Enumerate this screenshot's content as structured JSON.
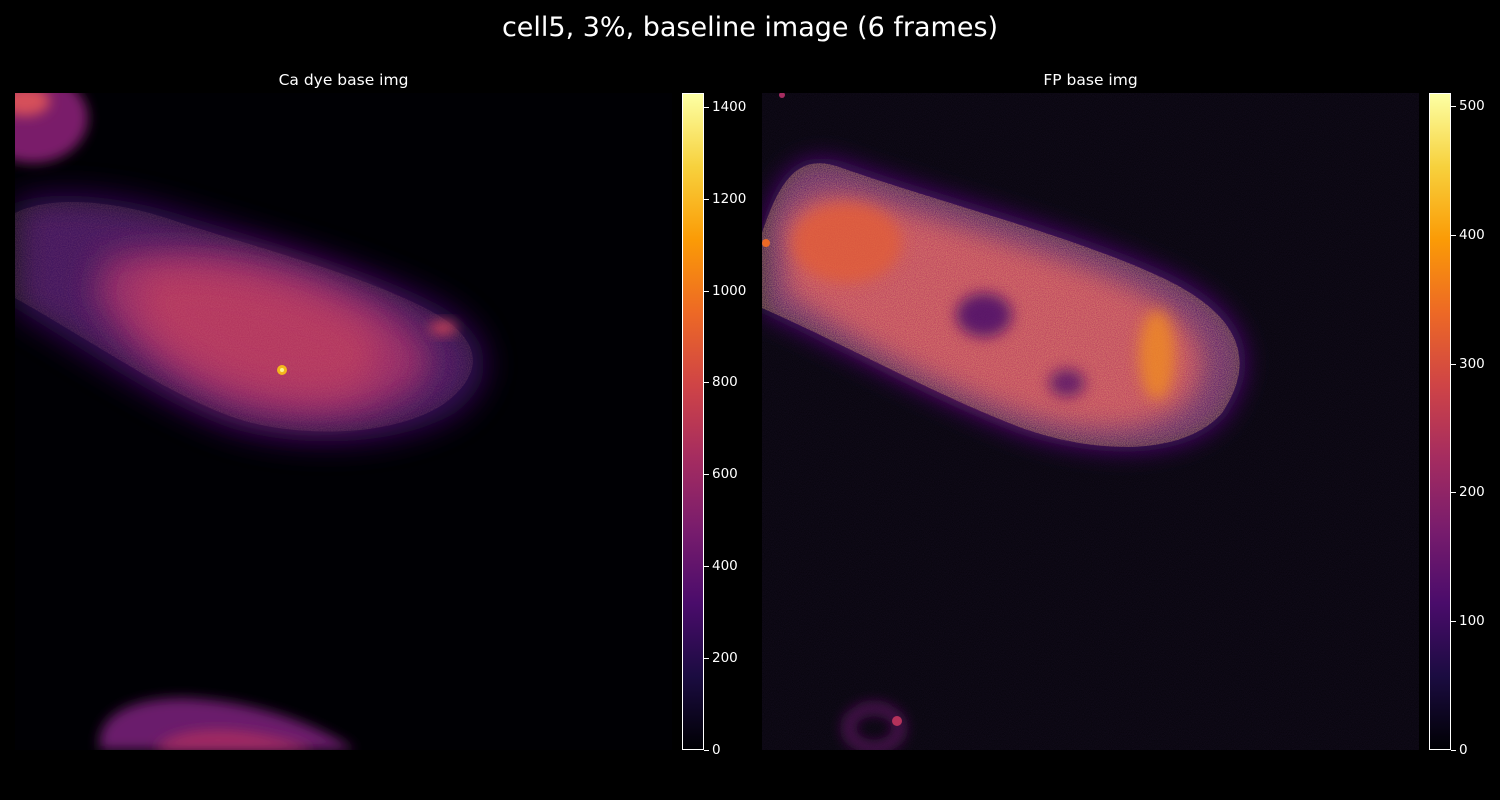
{
  "figure": {
    "title": "cell5, 3%, baseline image (6 frames)"
  },
  "panels": [
    {
      "title": "Ca dye base img",
      "colormap": "inferno",
      "colorbar": {
        "min": 0,
        "max": 1430,
        "ticks": [
          0,
          200,
          400,
          600,
          800,
          1000,
          1200,
          1400
        ]
      }
    },
    {
      "title": "FP base img",
      "colormap": "inferno",
      "colorbar": {
        "min": 0,
        "max": 510,
        "ticks": [
          0,
          100,
          200,
          300,
          400,
          500
        ]
      }
    }
  ],
  "colors": {
    "background": "#000000",
    "colormap_stops": [
      "#000004",
      "#1b0c41",
      "#4a0c6b",
      "#781c6d",
      "#a52c60",
      "#cf4446",
      "#ed6925",
      "#fb9b06",
      "#f7d13d",
      "#fcffa4"
    ]
  }
}
